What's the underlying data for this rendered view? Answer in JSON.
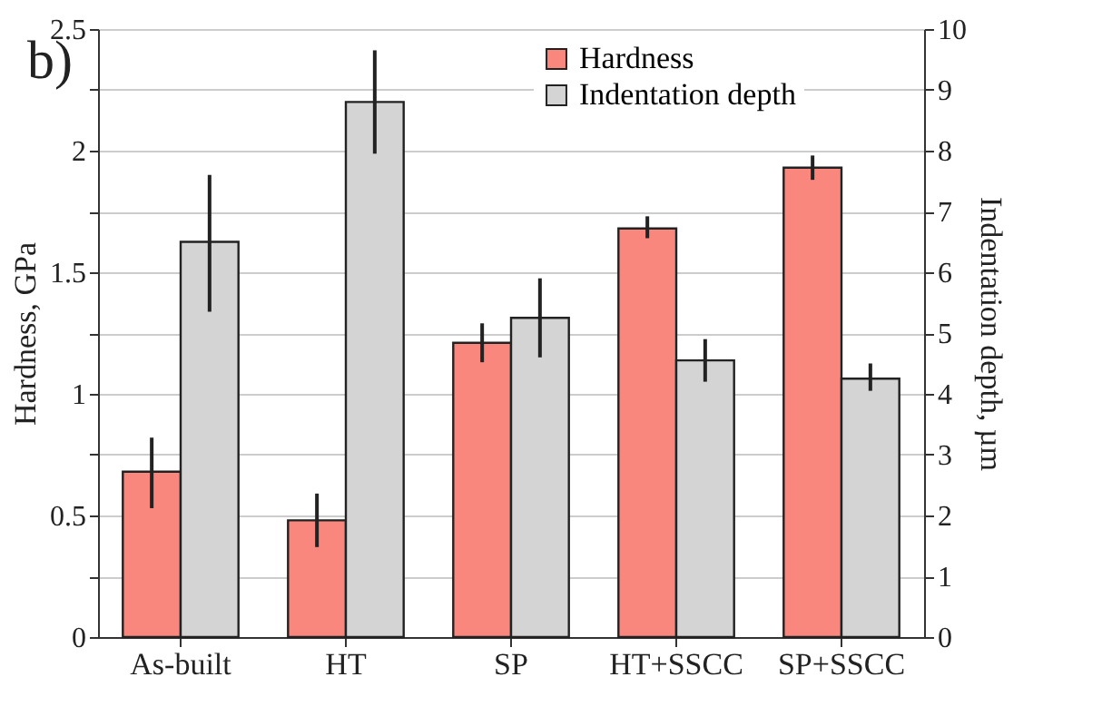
{
  "chart_data": {
    "type": "bar",
    "title": "b)",
    "ylabel": "Hardness, GPa",
    "y2label": "Indentation depth, µm",
    "categories": [
      "As-built",
      "HT",
      "SP",
      "HT+SSCC",
      "SP+SSCC"
    ],
    "series": [
      {
        "name": "Hardness",
        "color": "#fa877e",
        "values": [
          0.68,
          0.48,
          1.21,
          1.68,
          1.93
        ],
        "errors": [
          [
            0.53,
            0.82
          ],
          [
            0.37,
            0.59
          ],
          [
            1.13,
            1.29
          ],
          [
            1.64,
            1.73
          ],
          [
            1.88,
            1.98
          ]
        ]
      },
      {
        "name": "Indentation depth",
        "color": "#d4d4d4",
        "axis": "y2",
        "values": [
          6.5,
          8.8,
          5.25,
          4.55,
          4.25
        ],
        "errors": [
          [
            5.35,
            7.6
          ],
          [
            7.95,
            9.65
          ],
          [
            4.6,
            5.9
          ],
          [
            4.2,
            4.9
          ],
          [
            4.05,
            4.5
          ]
        ]
      }
    ],
    "ylim": [
      0,
      2.5
    ],
    "yticks": [
      0,
      {
        "value": 0.25,
        "label": null
      },
      0.5,
      {
        "value": 0.75,
        "label": null
      },
      1,
      {
        "value": 1.25,
        "label": null
      },
      1.5,
      {
        "value": 1.75,
        "label": null
      },
      2,
      {
        "value": 2.25,
        "label": null
      },
      2.5
    ],
    "y2lim": [
      0,
      10
    ],
    "y2ticks": [
      0,
      1,
      2,
      3,
      4,
      5,
      6,
      7,
      8,
      9,
      10
    ],
    "grid": "y",
    "legend": "top right"
  }
}
